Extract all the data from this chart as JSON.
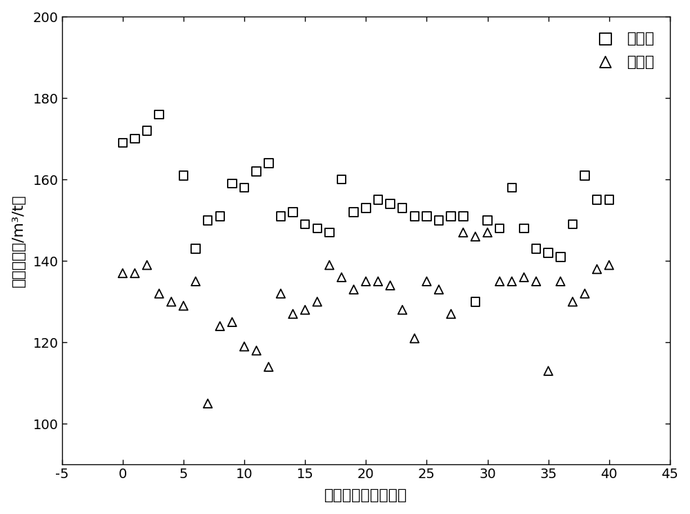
{
  "before_x": [
    0,
    1,
    2,
    3,
    5,
    6,
    7,
    8,
    9,
    10,
    11,
    12,
    13,
    14,
    15,
    16,
    17,
    18,
    19,
    20,
    21,
    22,
    23,
    24,
    25,
    26,
    27,
    28,
    29,
    30,
    31,
    32,
    33,
    34,
    35,
    36,
    37,
    38,
    39,
    40
  ],
  "before_y": [
    169,
    170,
    172,
    176,
    161,
    143,
    150,
    151,
    159,
    158,
    162,
    164,
    151,
    152,
    149,
    148,
    147,
    160,
    152,
    153,
    155,
    154,
    153,
    151,
    151,
    150,
    151,
    151,
    130,
    150,
    148,
    158,
    148,
    143,
    142,
    141,
    149,
    161,
    155,
    155
  ],
  "after_x": [
    0,
    1,
    2,
    3,
    4,
    5,
    6,
    7,
    8,
    9,
    10,
    11,
    12,
    13,
    14,
    15,
    16,
    17,
    18,
    19,
    20,
    21,
    22,
    23,
    24,
    25,
    26,
    27,
    28,
    29,
    30,
    31,
    32,
    33,
    34,
    35,
    36,
    37,
    38,
    39,
    40
  ],
  "after_y": [
    137,
    137,
    139,
    132,
    130,
    129,
    135,
    105,
    124,
    125,
    119,
    118,
    114,
    132,
    127,
    128,
    130,
    139,
    136,
    133,
    135,
    135,
    134,
    128,
    121,
    135,
    133,
    127,
    147,
    146,
    147,
    135,
    135,
    136,
    135,
    113,
    135,
    130,
    132,
    138,
    139
  ],
  "xlim": [
    -5,
    45
  ],
  "ylim": [
    90,
    200
  ],
  "xticks": [
    -5,
    0,
    5,
    10,
    15,
    20,
    25,
    30,
    35,
    40,
    45
  ],
  "yticks": [
    100,
    120,
    140,
    160,
    180,
    200
  ],
  "xlabel": "煮气回收量采集炉次",
  "ylabel": "煮气回收量/m³/t钓",
  "legend_before": "实施前",
  "legend_after": "实施后",
  "marker_color": "#000000",
  "background_color": "#ffffff",
  "marker_size": 9,
  "label_fontsize": 16,
  "tick_fontsize": 14,
  "legend_fontsize": 16
}
